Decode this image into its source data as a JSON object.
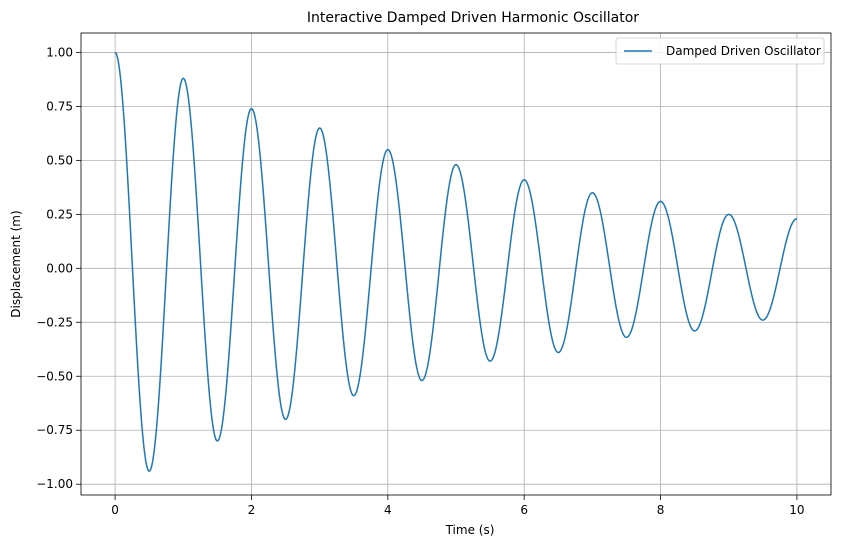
{
  "chart_data": {
    "type": "line",
    "title": "Interactive Damped Driven Harmonic Oscillator",
    "xlabel": "Time (s)",
    "ylabel": "Displacement (m)",
    "xlim": [
      -0.5,
      10.5
    ],
    "ylim": [
      -1.05,
      1.09
    ],
    "xticks": [
      0,
      2,
      4,
      6,
      8,
      10
    ],
    "xtick_labels": [
      "0",
      "2",
      "4",
      "6",
      "8",
      "10"
    ],
    "yticks": [
      -1.0,
      -0.75,
      -0.5,
      -0.25,
      0.0,
      0.25,
      0.5,
      0.75,
      1.0
    ],
    "ytick_labels": [
      "−1.00",
      "−0.75",
      "−0.50",
      "−0.25",
      "0.00",
      "0.25",
      "0.50",
      "0.75",
      "1.00"
    ],
    "grid": true,
    "legend_position": "top-right",
    "series": [
      {
        "name": "Damped Driven Oscillator",
        "color": "#1f77b4",
        "x": [
          0,
          0.5,
          1.0,
          1.5,
          2.0,
          2.5,
          3.0,
          3.5,
          4.0,
          4.5,
          5.0,
          5.5,
          6.0,
          6.5,
          7.0,
          7.5,
          8.0,
          8.5,
          9.0,
          9.5,
          10.0
        ],
        "y": [
          1.0,
          -0.94,
          0.88,
          -0.8,
          0.74,
          -0.7,
          0.65,
          -0.59,
          0.55,
          -0.52,
          0.48,
          -0.43,
          0.41,
          -0.39,
          0.35,
          -0.32,
          0.31,
          -0.29,
          0.25,
          -0.24,
          0.23
        ]
      }
    ]
  }
}
